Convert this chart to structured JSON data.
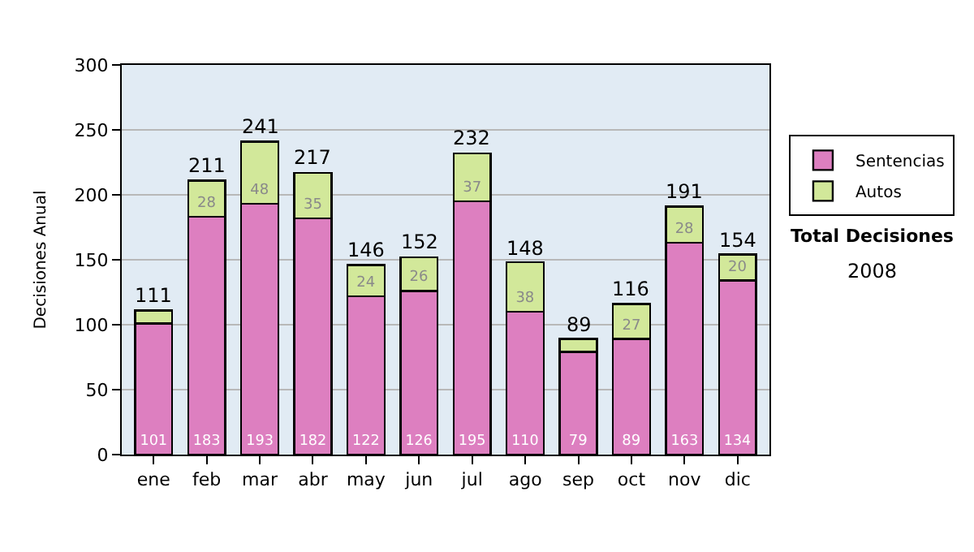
{
  "chart_data": {
    "type": "bar",
    "stacked": true,
    "ylabel": "Decisiones Anual",
    "categories": [
      "ene",
      "feb",
      "mar",
      "abr",
      "may",
      "jun",
      "jul",
      "ago",
      "sep",
      "oct",
      "nov",
      "dic"
    ],
    "series": [
      {
        "name": "Sentencias",
        "color": "#dd7fc0",
        "values": [
          101,
          183,
          193,
          182,
          122,
          126,
          195,
          110,
          79,
          89,
          163,
          134
        ],
        "value_labels": [
          "101",
          "183",
          "193",
          "182",
          "122",
          "126",
          "195",
          "110",
          "79",
          "89",
          "163",
          "134"
        ]
      },
      {
        "name": "Autos",
        "color": "#d2e89a",
        "values": [
          10,
          28,
          48,
          35,
          24,
          26,
          37,
          38,
          10,
          27,
          28,
          20
        ],
        "value_labels": [
          null,
          "28",
          "48",
          "35",
          "24",
          "26",
          "37",
          "38",
          null,
          "27",
          "28",
          "20"
        ]
      }
    ],
    "totals": [
      "111",
      "211",
      "241",
      "217",
      "146",
      "152",
      "232",
      "148",
      "89",
      "116",
      "191",
      "154"
    ],
    "ylim": [
      0,
      300
    ],
    "yticks": [
      0,
      50,
      100,
      150,
      200,
      250,
      300
    ],
    "grid": "y",
    "legend": "right",
    "annotations": [
      "Total Decisiones",
      "2008"
    ]
  }
}
